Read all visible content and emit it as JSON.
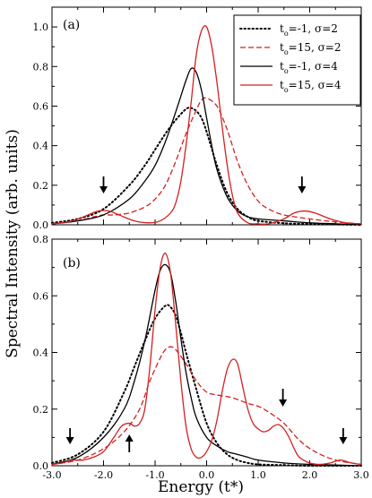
{
  "figure": {
    "ylabel": "Spectral Intensity (arb. units)",
    "xlabel": "Energy (t*)"
  },
  "chart_data": [
    {
      "type": "line",
      "panel_label": "(a)",
      "xlim": [
        -3.0,
        3.0
      ],
      "ylim": [
        0,
        1.1
      ],
      "x_ticks": [
        -3.0,
        -2.0,
        -1.0,
        0.0,
        1.0,
        2.0,
        3.0
      ],
      "y_ticks": [
        0,
        0.2,
        0.4,
        0.6,
        0.8,
        1.0
      ],
      "y_tick_labels": [
        "0.0",
        "0.2",
        "0.4",
        "0.6",
        "0.8",
        "1.0"
      ],
      "grid": false,
      "legend_position": "top-right",
      "series": [
        {
          "name_main": "t",
          "name_sub": "o",
          "name_rest": "=-1, σ=2",
          "color": "#000000",
          "style": "dotted",
          "x": [
            -3.0,
            -2.5,
            -2.0,
            -1.5,
            -1.2,
            -1.0,
            -0.8,
            -0.6,
            -0.4,
            -0.3,
            -0.2,
            -0.1,
            0.0,
            0.2,
            0.4,
            0.6,
            0.8,
            1.0,
            1.5,
            2.0,
            2.5,
            3.0
          ],
          "y": [
            0.01,
            0.03,
            0.08,
            0.2,
            0.3,
            0.38,
            0.46,
            0.53,
            0.585,
            0.59,
            0.575,
            0.54,
            0.47,
            0.3,
            0.16,
            0.08,
            0.04,
            0.02,
            0.008,
            0.004,
            0.002,
            0.0
          ]
        },
        {
          "name_main": "t",
          "name_sub": "o",
          "name_rest": "=15, σ=2",
          "color": "#d42020",
          "style": "dashed",
          "x": [
            -3.0,
            -2.5,
            -2.2,
            -2.0,
            -1.8,
            -1.5,
            -1.2,
            -1.0,
            -0.8,
            -0.6,
            -0.4,
            -0.2,
            -0.1,
            0.0,
            0.2,
            0.4,
            0.6,
            0.8,
            1.0,
            1.2,
            1.5,
            2.0,
            2.5,
            3.0
          ],
          "y": [
            0.005,
            0.02,
            0.04,
            0.05,
            0.05,
            0.06,
            0.09,
            0.13,
            0.2,
            0.32,
            0.46,
            0.58,
            0.63,
            0.64,
            0.6,
            0.48,
            0.32,
            0.2,
            0.12,
            0.08,
            0.05,
            0.03,
            0.015,
            0.005
          ]
        },
        {
          "name_main": "t",
          "name_sub": "o",
          "name_rest": "=-1, σ=4",
          "color": "#000000",
          "style": "solid",
          "x": [
            -3.0,
            -2.5,
            -2.0,
            -1.5,
            -1.2,
            -1.0,
            -0.8,
            -0.6,
            -0.5,
            -0.4,
            -0.3,
            -0.2,
            -0.1,
            0.0,
            0.1,
            0.2,
            0.4,
            0.6,
            0.8,
            1.0,
            1.5,
            2.0,
            2.5,
            3.0
          ],
          "y": [
            0.005,
            0.02,
            0.05,
            0.13,
            0.22,
            0.3,
            0.42,
            0.57,
            0.65,
            0.73,
            0.79,
            0.77,
            0.68,
            0.54,
            0.4,
            0.28,
            0.14,
            0.07,
            0.04,
            0.03,
            0.02,
            0.01,
            0.005,
            0.0
          ]
        },
        {
          "name_main": "t",
          "name_sub": "o",
          "name_rest": "=15, σ=4",
          "color": "#d42020",
          "style": "solid",
          "x": [
            -3.0,
            -2.6,
            -2.3,
            -2.1,
            -1.9,
            -1.7,
            -1.4,
            -1.1,
            -0.9,
            -0.7,
            -0.6,
            -0.5,
            -0.4,
            -0.3,
            -0.2,
            -0.1,
            0.0,
            0.1,
            0.2,
            0.3,
            0.4,
            0.5,
            0.6,
            0.8,
            1.0,
            1.2,
            1.5,
            1.7,
            1.9,
            2.1,
            2.4,
            2.7,
            3.0
          ],
          "y": [
            0.005,
            0.02,
            0.05,
            0.07,
            0.07,
            0.05,
            0.02,
            0.01,
            0.02,
            0.06,
            0.11,
            0.22,
            0.4,
            0.62,
            0.86,
            0.98,
            1.0,
            0.9,
            0.72,
            0.5,
            0.3,
            0.15,
            0.06,
            0.01,
            0.005,
            0.005,
            0.03,
            0.06,
            0.07,
            0.06,
            0.03,
            0.01,
            0.005
          ]
        }
      ],
      "arrows": [
        {
          "x": -2.0,
          "direction": "down"
        },
        {
          "x": 1.85,
          "direction": "down"
        }
      ]
    },
    {
      "type": "line",
      "panel_label": "(b)",
      "xlim": [
        -3.0,
        3.0
      ],
      "ylim": [
        0,
        0.8
      ],
      "x_ticks": [
        -3.0,
        -2.0,
        -1.0,
        0.0,
        1.0,
        2.0,
        3.0
      ],
      "x_tick_labels": [
        "-3.0",
        "-2.0",
        "-1.0",
        "0.0",
        "1.0",
        "2.0",
        "3.0"
      ],
      "y_ticks": [
        0,
        0.2,
        0.4,
        0.6,
        0.8
      ],
      "y_tick_labels": [
        "0.0",
        "0.2",
        "0.4",
        "0.6",
        "0.8"
      ],
      "grid": false,
      "series": [
        {
          "color": "#000000",
          "style": "dotted",
          "x": [
            -3.0,
            -2.5,
            -2.0,
            -1.6,
            -1.4,
            -1.2,
            -1.0,
            -0.8,
            -0.7,
            -0.6,
            -0.5,
            -0.4,
            -0.2,
            0.0,
            0.2,
            0.4,
            0.6,
            0.8,
            1.0,
            1.5,
            2.0,
            3.0
          ],
          "y": [
            0.01,
            0.04,
            0.12,
            0.26,
            0.35,
            0.44,
            0.52,
            0.565,
            0.56,
            0.53,
            0.47,
            0.4,
            0.27,
            0.15,
            0.08,
            0.04,
            0.02,
            0.01,
            0.005,
            0.002,
            0.0,
            0.0
          ]
        },
        {
          "color": "#d42020",
          "style": "dashed",
          "x": [
            -3.0,
            -2.5,
            -2.0,
            -1.6,
            -1.3,
            -1.1,
            -0.9,
            -0.8,
            -0.7,
            -0.6,
            -0.4,
            -0.2,
            0.0,
            0.2,
            0.5,
            0.8,
            1.0,
            1.2,
            1.5,
            1.8,
            2.1,
            2.5,
            3.0
          ],
          "y": [
            0.005,
            0.02,
            0.06,
            0.12,
            0.2,
            0.3,
            0.38,
            0.41,
            0.42,
            0.41,
            0.36,
            0.3,
            0.26,
            0.25,
            0.24,
            0.22,
            0.21,
            0.19,
            0.15,
            0.09,
            0.05,
            0.02,
            0.005
          ]
        },
        {
          "color": "#000000",
          "style": "solid",
          "x": [
            -3.0,
            -2.5,
            -2.0,
            -1.6,
            -1.4,
            -1.2,
            -1.0,
            -0.9,
            -0.8,
            -0.7,
            -0.6,
            -0.5,
            -0.4,
            -0.3,
            -0.2,
            0.0,
            0.2,
            0.4,
            0.6,
            0.8,
            1.0,
            1.5,
            2.0,
            3.0
          ],
          "y": [
            0.005,
            0.03,
            0.1,
            0.2,
            0.3,
            0.44,
            0.62,
            0.69,
            0.71,
            0.68,
            0.58,
            0.45,
            0.33,
            0.24,
            0.17,
            0.1,
            0.07,
            0.05,
            0.04,
            0.03,
            0.02,
            0.01,
            0.005,
            0.0
          ]
        },
        {
          "color": "#d42020",
          "style": "solid",
          "x": [
            -3.0,
            -2.8,
            -2.6,
            -2.4,
            -2.2,
            -2.0,
            -1.8,
            -1.65,
            -1.5,
            -1.4,
            -1.3,
            -1.2,
            -1.1,
            -1.0,
            -0.9,
            -0.8,
            -0.7,
            -0.6,
            -0.5,
            -0.4,
            -0.3,
            -0.2,
            -0.1,
            0.0,
            0.1,
            0.2,
            0.3,
            0.4,
            0.5,
            0.6,
            0.7,
            0.8,
            0.9,
            1.0,
            1.1,
            1.2,
            1.3,
            1.4,
            1.5,
            1.6,
            1.7,
            1.8,
            2.0,
            2.2,
            2.4,
            2.6,
            2.8,
            3.0
          ],
          "y": [
            0.005,
            0.01,
            0.02,
            0.02,
            0.03,
            0.05,
            0.1,
            0.14,
            0.15,
            0.14,
            0.15,
            0.2,
            0.35,
            0.55,
            0.7,
            0.75,
            0.68,
            0.5,
            0.3,
            0.14,
            0.06,
            0.03,
            0.03,
            0.05,
            0.09,
            0.16,
            0.26,
            0.34,
            0.375,
            0.36,
            0.28,
            0.2,
            0.15,
            0.13,
            0.12,
            0.125,
            0.14,
            0.145,
            0.13,
            0.1,
            0.06,
            0.03,
            0.01,
            0.005,
            0.01,
            0.02,
            0.01,
            0.005
          ]
        }
      ],
      "arrows": [
        {
          "x": -2.65,
          "direction": "down"
        },
        {
          "x": -1.5,
          "direction": "up"
        },
        {
          "x": 1.48,
          "direction": "down"
        },
        {
          "x": 2.65,
          "direction": "down"
        }
      ]
    }
  ]
}
